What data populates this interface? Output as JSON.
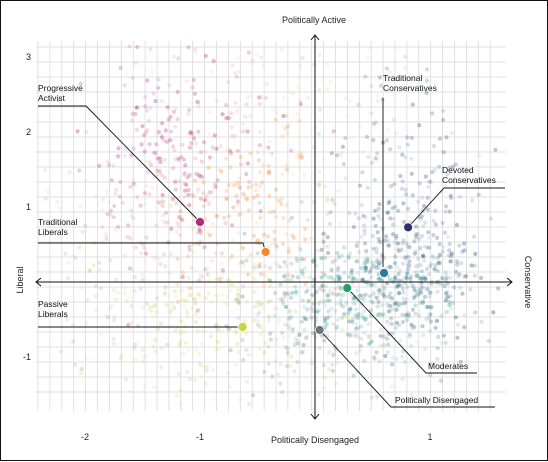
{
  "chart_data": {
    "type": "scatter",
    "title": "",
    "axis_labels": {
      "top": "Politically Active",
      "bottom": "Politically Disengaged",
      "left": "Liberal",
      "right": "Conservative"
    },
    "xlim": [
      -2.45,
      1.6
    ],
    "ylim": [
      -1.8,
      3.3
    ],
    "x_ticks": [
      "-2",
      "-1",
      "1"
    ],
    "x_tick_values": [
      -2,
      -1,
      1
    ],
    "y_ticks": [
      "3",
      "2",
      "1",
      "-1"
    ],
    "y_tick_values": [
      3,
      2,
      1,
      -1
    ],
    "grid": true,
    "segments": [
      {
        "label_lines": [
          "Progressive",
          "Activist"
        ],
        "x": -1.0,
        "y": 0.8,
        "color": "#b02a74"
      },
      {
        "label_lines": [
          "Traditional",
          "Liberals"
        ],
        "x": -0.43,
        "y": 0.4,
        "color": "#f28a2e"
      },
      {
        "label_lines": [
          "Passive",
          "Liberals"
        ],
        "x": -0.63,
        "y": -0.6,
        "color": "#c6d63a"
      },
      {
        "label_lines": [
          "Traditional",
          "Conservatives"
        ],
        "x": 0.6,
        "y": 0.12,
        "color": "#2b7a99"
      },
      {
        "label_lines": [
          "Devoted",
          "Conservatives"
        ],
        "x": 0.81,
        "y": 0.73,
        "color": "#2e2f6e"
      },
      {
        "label_lines": [
          "Moderates"
        ],
        "x": 0.28,
        "y": -0.08,
        "color": "#22a066"
      },
      {
        "label_lines": [
          "Politically Disengaged"
        ],
        "x": 0.04,
        "y": -0.64,
        "color": "#6b7580"
      }
    ]
  }
}
